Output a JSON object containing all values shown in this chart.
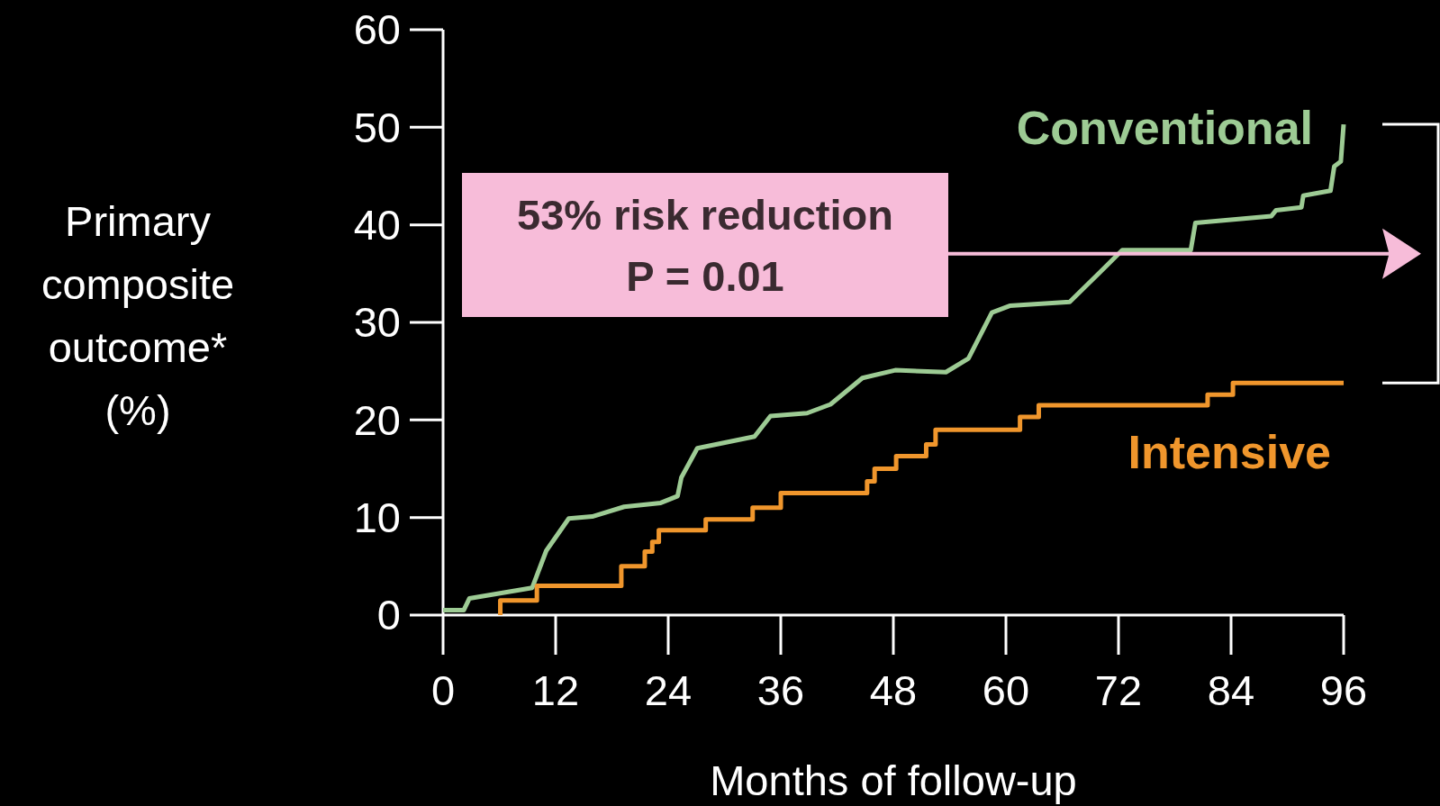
{
  "chart_data": {
    "type": "line",
    "xlabel": "Months of follow-up",
    "ylabel": "Primary composite outcome* (%)",
    "xlim": [
      0,
      96
    ],
    "xticks": [
      0,
      12,
      24,
      36,
      48,
      60,
      72,
      84,
      96
    ],
    "ylim": [
      0,
      60
    ],
    "yticks": [
      0,
      10,
      20,
      30,
      40,
      50,
      60
    ],
    "grid": false,
    "series": [
      {
        "name": "Conventional",
        "color": "#9dcb94",
        "x": [
          0,
          2.2,
          2.8,
          9.5,
          11,
          13.4,
          15.9,
          19.3,
          23.2,
          25,
          25.4,
          27.1,
          33.2,
          34.9,
          38.8,
          41.3,
          44.7,
          48.2,
          53.6,
          56,
          58.5,
          60.4,
          66.8,
          70.2,
          72.4,
          79.7,
          80.2,
          88.3,
          88.8,
          91.5,
          91.7,
          94.6,
          95,
          95.7,
          96
        ],
        "values": [
          0.5,
          0.5,
          1.7,
          2.8,
          6.6,
          9.9,
          10.1,
          11.1,
          11.5,
          12.2,
          14.1,
          17.1,
          18.3,
          20.4,
          20.7,
          21.6,
          24.3,
          25.1,
          24.9,
          26.3,
          31,
          31.7,
          32.1,
          35.3,
          37.4,
          37.4,
          40.2,
          40.9,
          41.5,
          41.8,
          43,
          43.5,
          46,
          46.5,
          50.3
        ]
      },
      {
        "name": "Intensive",
        "color": "#f0962c",
        "type": "step",
        "x": [
          6.1,
          6.1,
          10,
          19,
          21.5,
          22.3,
          23,
          28,
          33,
          36,
          45.2,
          46,
          48.3,
          51.5,
          52.5,
          61.5,
          63.5,
          81.5,
          84.2,
          96
        ],
        "values": [
          0,
          1.5,
          3,
          5,
          6.5,
          7.5,
          8.7,
          9.8,
          11,
          12.5,
          13.7,
          15,
          16.3,
          17.5,
          19,
          20.3,
          21.5,
          22.6,
          23.8,
          23.8
        ]
      }
    ],
    "annotations": [
      "53% risk reduction P = 0.01"
    ]
  }
}
